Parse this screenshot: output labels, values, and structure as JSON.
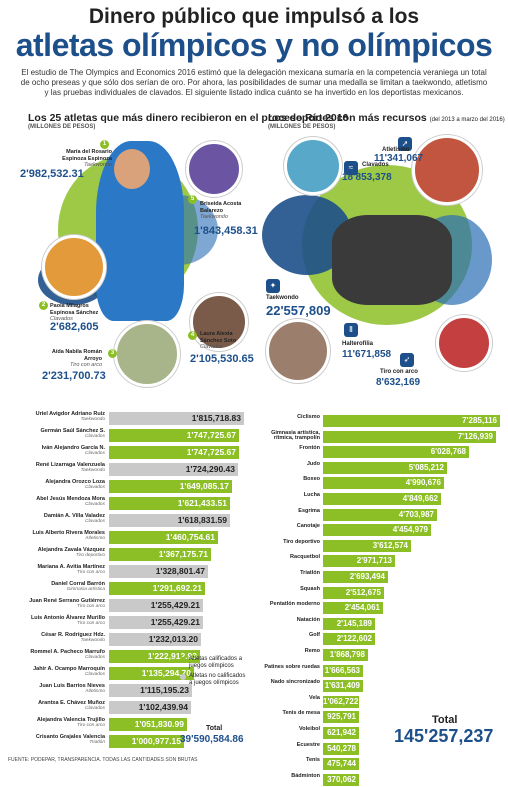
{
  "header": {
    "title_line1": "Dinero público que impulsó a los",
    "title_line2": "atletas olímpicos y no olímpicos",
    "intro": "El estudio de The Olympics and Economics 2016 estimó que la delegación mexicana sumaría en la competencia veraniega un total de ocho preseas y que sólo dos serían de oro. Por ahora, las posibilidades de sumar una medalla se limitan a taekwondo, atletismo y las pruebas individuales de clavados. El siguiente listado indica cuánto se ha invertido en los deportistas mexicanos."
  },
  "left_section": {
    "title": "Los 25 atletas que más dinero recibieron en el proceso Río 2016",
    "subtitle": "(MILLONES DE PESOS)"
  },
  "right_section": {
    "title": "Los deportes con más recursos",
    "title_note": "(del 2013 a marzo del 2016)",
    "subtitle": "(MILLONES DE PESOS)"
  },
  "featured_athletes": [
    {
      "rank": "1",
      "name": "María del Rosario Espinoza Espinoza",
      "sport": "Taekwondo",
      "amount": "2'982,532.31"
    },
    {
      "rank": "2",
      "name": "Paola Milagros Espinosa Sánchez",
      "sport": "Clavados",
      "amount": "2'682,605"
    },
    {
      "rank": "3",
      "name": "Aída Nabila Román Arroyo",
      "sport": "Tiro con arco",
      "amount": "2'231,700.73"
    },
    {
      "rank": "4",
      "name": "Laura Alexia Sánchez Soto",
      "sport": "Clavados",
      "amount": "2'105,530.65"
    },
    {
      "rank": "5",
      "name": "Briseida Acosta Balarezo",
      "sport": "Taekwondo",
      "amount": "1'843,458.31"
    }
  ],
  "featured_sports": [
    {
      "name": "Clavados",
      "amount": "18'853,378",
      "icon": "diving-icon"
    },
    {
      "name": "Atletismo",
      "amount": "11'341,067",
      "icon": "running-icon"
    },
    {
      "name": "Taekwondo",
      "amount": "22'557,809",
      "icon": "taekwondo-icon"
    },
    {
      "name": "Halterofilia",
      "amount": "11'671,858",
      "icon": "weightlifting-icon"
    },
    {
      "name": "Tiro con arco",
      "amount": "8'632,169",
      "icon": "archery-icon"
    }
  ],
  "legend": {
    "qualified": "Atletas calificados a juegos olímpicos",
    "not_qualified": "Atletas no calificados a juegos olímpicos"
  },
  "totals": {
    "left_label": "Total",
    "left_value": "39'590,584.86",
    "right_label": "Total",
    "right_value": "145'257,237"
  },
  "source": "FUENTE: PODEPAR, TRANSPARENCIA. TODAS LAS CANTIDADES SON BRUTAS",
  "colors": {
    "qualified": "#8cbf26",
    "not_qualified": "#c9c9c9",
    "accent": "#1d4f8a"
  },
  "chart_data": [
    {
      "type": "bar",
      "orientation": "horizontal",
      "categories": [
        "Uriel Avigdor Adriano Ruiz",
        "Germán Saúl Sánchez S.",
        "Iván Alejandro García N.",
        "René Lizarraga Valenzuela",
        "Alejandra Orozco Loza",
        "Abel Jesús Mendoza Mora",
        "Damián A. Villa Valadez",
        "Luis Alberto Rivera Morales",
        "Alejandra Zavala Vázquez",
        "Mariana A. Avitia Martínez",
        "Daniel Corral Barrón",
        "Juan René Serrano Gutiérrez",
        "Luis Antonio Álvarez Murillo",
        "César R. Rodríguez Hdz.",
        "Rommel A. Pacheco Marrufo",
        "Jahir A. Ocampo Marroquín",
        "Juan Luis Barrios Nieves",
        "Arantxa E. Chávez Muñoz",
        "Alejandra Valencia Trujillo",
        "Crisanto Grajales Valencia"
      ],
      "sports": [
        "Taekwondo",
        "Clavados",
        "Clavados",
        "Taekwondo",
        "Clavados",
        "Clavados",
        "Clavados",
        "Atletismo",
        "Tiro deportivo",
        "Tiro con arco",
        "Gimnasia artística",
        "Tiro con arco",
        "Tiro con arco",
        "Taekwondo",
        "Clavados",
        "Clavados",
        "Atletismo",
        "Clavados",
        "Tiro con arco",
        "Triatlón"
      ],
      "values": [
        1815718.83,
        1747725.67,
        1747725.67,
        1724290.43,
        1649085.17,
        1621433.51,
        1618831.59,
        1460754.61,
        1367175.71,
        1328801.47,
        1291692.21,
        1255429.21,
        1255429.21,
        1232013.2,
        1222912.93,
        1135294.7,
        1115195.23,
        1102439.94,
        1051830.99,
        1000977.15
      ],
      "labels": [
        "1'815,718.83",
        "1'747,725.67",
        "1'747,725.67",
        "1'724,290.43",
        "1'649,085.17",
        "1'621,433.51",
        "1'618,831.59",
        "1'460,754.61",
        "1'367,175.71",
        "1'328,801.47",
        "1'291,692.21",
        "1'255,429.21",
        "1'255,429.21",
        "1'232,013.20",
        "1'222,912.93",
        "1'135,294.70",
        "1'115,195.23",
        "1'102,439.94",
        "1'051,830.99",
        "1'000,977.15"
      ],
      "qualified": [
        false,
        true,
        true,
        false,
        true,
        true,
        false,
        true,
        true,
        false,
        true,
        false,
        false,
        false,
        true,
        true,
        false,
        false,
        true,
        true
      ]
    },
    {
      "type": "bar",
      "orientation": "horizontal",
      "categories": [
        "Ciclismo",
        "Gimnasia artística, rítmica, trampolín",
        "Frontón",
        "Judo",
        "Boxeo",
        "Lucha",
        "Esgrima",
        "Canotaje",
        "Tiro deportivo",
        "Racquetbol",
        "Triatlón",
        "Squash",
        "Pentatlón moderno",
        "Natación",
        "Golf",
        "Remo",
        "Patines sobre ruedas",
        "Nado sincronizado",
        "Vela",
        "Tenis de mesa",
        "Voleibol",
        "Ecuestre",
        "Tenis",
        "Bádminton"
      ],
      "values": [
        7285116,
        7126939,
        6028768,
        5085212,
        4990676,
        4849662,
        4703987,
        4454979,
        3612574,
        2971713,
        2693494,
        2512675,
        2454061,
        2145189,
        2122602,
        1868798,
        1666563,
        1631409,
        1062722,
        925791,
        621942,
        540278,
        475744,
        370062
      ],
      "labels": [
        "7'285,116",
        "7'126,939",
        "6'028,768",
        "5'085,212",
        "4'990,676",
        "4'849,662",
        "4'703,987",
        "4'454,979",
        "3'612,574",
        "2'971,713",
        "2'693,494",
        "2'512,675",
        "2'454,061",
        "2'145,189",
        "2'122,602",
        "1'868,798",
        "1'666,563",
        "1'631,409",
        "1'062,722",
        "925,791",
        "621,942",
        "540,278",
        "475,744",
        "370,062"
      ]
    }
  ]
}
